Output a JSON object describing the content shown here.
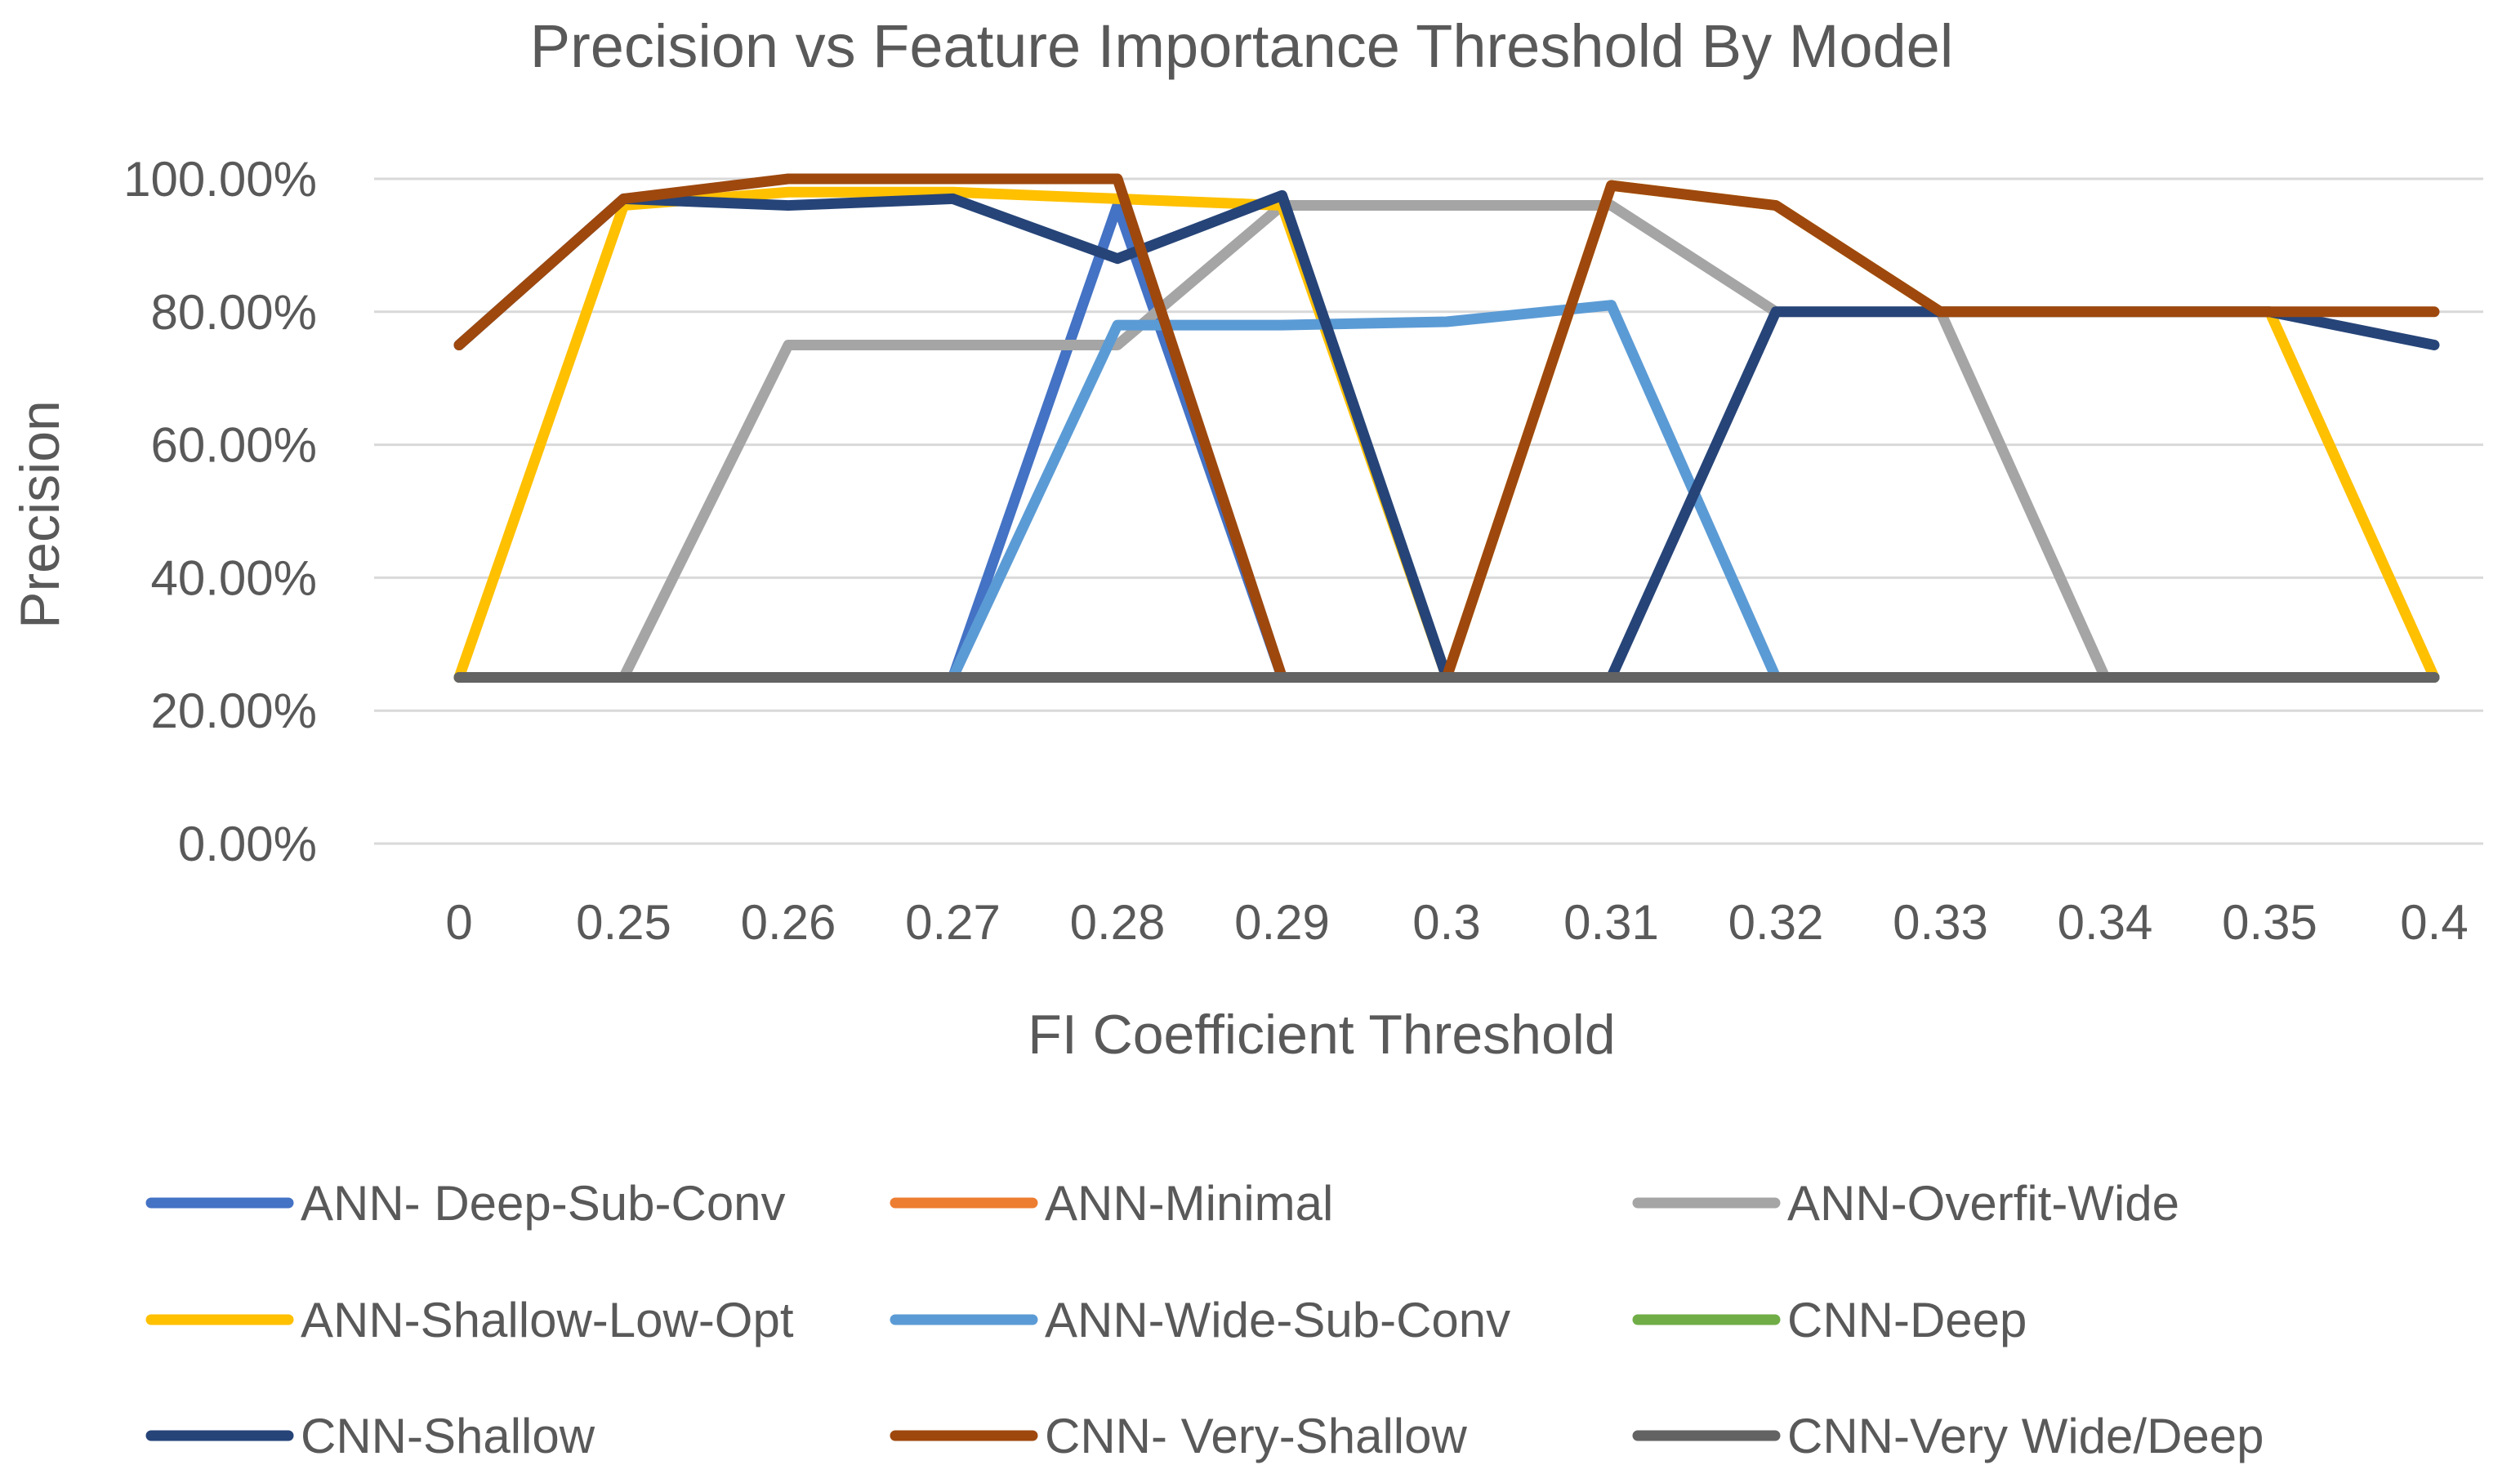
{
  "chart_data": {
    "type": "line",
    "title": "Precision vs Feature Importance Threshold By Model",
    "xlabel": "FI Coefficient Threshold",
    "ylabel": "Precision",
    "categories": [
      "0",
      "0.25",
      "0.26",
      "0.27",
      "0.28",
      "0.29",
      "0.3",
      "0.31",
      "0.32",
      "0.33",
      "0.34",
      "0.35",
      "0.4"
    ],
    "yticks": [
      "0.00%",
      "20.00%",
      "40.00%",
      "60.00%",
      "80.00%",
      "100.00%"
    ],
    "ylim": [
      0,
      100
    ],
    "grid": true,
    "legend_position": "bottom",
    "series": [
      {
        "name": "ANN- Deep-Sub-Conv",
        "color": "#4472C4",
        "values": [
          25,
          25,
          25,
          25,
          96,
          25,
          25,
          25,
          25,
          25,
          25,
          25,
          25
        ]
      },
      {
        "name": "ANN-Minimal",
        "color": "#ED7D31",
        "values": [
          25,
          25,
          25,
          25,
          25,
          25,
          25,
          25,
          25,
          25,
          25,
          25,
          25
        ]
      },
      {
        "name": "ANN-Overfit-Wide",
        "color": "#A5A5A5",
        "values": [
          25,
          25,
          75,
          75,
          75,
          96,
          96,
          96,
          80,
          80,
          25,
          25,
          25
        ]
      },
      {
        "name": "ANN-Shallow-Low-Opt",
        "color": "#FFC000",
        "values": [
          25,
          96,
          98,
          98,
          97,
          96,
          25,
          99,
          96,
          80,
          80,
          80,
          25
        ]
      },
      {
        "name": "ANN-Wide-Sub-Conv",
        "color": "#5B9BD5",
        "values": [
          25,
          25,
          25,
          25,
          78,
          78,
          78.5,
          81,
          25,
          25,
          25,
          25,
          25
        ]
      },
      {
        "name": "CNN-Deep",
        "color": "#70AD47",
        "values": [
          25,
          25,
          25,
          25,
          25,
          25,
          25,
          25,
          25,
          25,
          25,
          25,
          25
        ]
      },
      {
        "name": "CNN-Shallow",
        "color": "#264478",
        "values": [
          75,
          97,
          96,
          97,
          88,
          97.5,
          25,
          25,
          80,
          80,
          80,
          80,
          75
        ]
      },
      {
        "name": "CNN- Very-Shallow",
        "color": "#9E480E",
        "values": [
          75,
          97,
          100,
          100,
          100,
          25,
          25,
          99,
          96,
          80,
          80,
          80,
          80
        ]
      },
      {
        "name": "CNN-Very Wide/Deep",
        "color": "#636363",
        "values": [
          25,
          25,
          25,
          25,
          25,
          25,
          25,
          25,
          25,
          25,
          25,
          25,
          25
        ]
      }
    ]
  }
}
